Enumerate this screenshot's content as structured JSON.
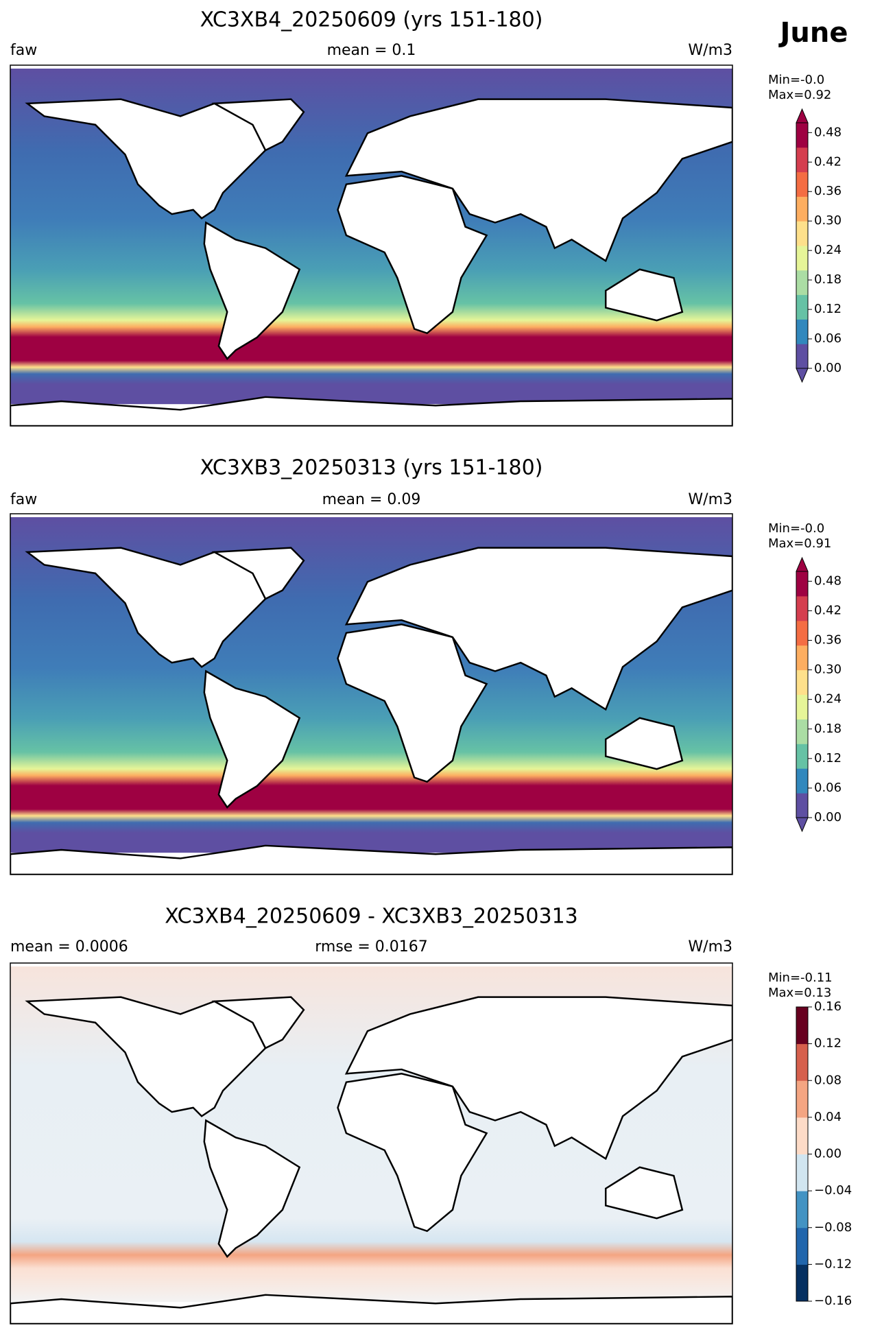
{
  "month": "June",
  "chart_data": [
    {
      "type": "map",
      "title": "XC3XB4_20250609 (yrs 151-180)",
      "left_label": "faw",
      "center_label": "mean = 0.1",
      "units": "W/m3",
      "min_label": "Min=-0.0",
      "max_label": "Max=0.92",
      "colorbar": {
        "ylim": [
          0,
          0.5
        ],
        "extend": "both",
        "yticks": [
          {
            "value": 0,
            "label": "0.00"
          },
          0.06,
          0.12,
          0.18,
          0.24,
          {
            "value": 0.3,
            "label": "0.30"
          },
          0.36,
          0.42,
          0.48
        ],
        "colors": [
          "#5e4fa2",
          "#3288bd",
          "#66c2a5",
          "#abdda4",
          "#e6f598",
          "#fee08b",
          "#fdae61",
          "#f46d43",
          "#d53e4f",
          "#9e0142"
        ]
      }
    },
    {
      "type": "map",
      "title": "XC3XB3_20250313 (yrs 151-180)",
      "left_label": "faw",
      "center_label": "mean = 0.09",
      "units": "W/m3",
      "min_label": "Min=-0.0",
      "max_label": "Max=0.91",
      "colorbar": {
        "ylim": [
          0,
          0.5
        ],
        "extend": "both",
        "yticks": [
          {
            "value": 0,
            "label": "0.00"
          },
          0.06,
          0.12,
          0.18,
          0.24,
          {
            "value": 0.3,
            "label": "0.30"
          },
          0.36,
          0.42,
          0.48
        ],
        "colors": [
          "#5e4fa2",
          "#3288bd",
          "#66c2a5",
          "#abdda4",
          "#e6f598",
          "#fee08b",
          "#fdae61",
          "#f46d43",
          "#d53e4f",
          "#9e0142"
        ]
      }
    },
    {
      "type": "map",
      "title": "XC3XB4_20250609 - XC3XB3_20250313",
      "left_label": "mean = 0.0006",
      "center_label": "rmse = 0.0167",
      "units": "W/m3",
      "min_label": "Min=-0.11",
      "max_label": "Max=0.13",
      "colorbar": {
        "ylim": [
          -0.16,
          0.16
        ],
        "extend": "neither",
        "yticks": [
          {
            "value": -0.16,
            "label": "−0.16"
          },
          {
            "value": -0.12,
            "label": "−0.12"
          },
          {
            "value": -0.08,
            "label": "−0.08"
          },
          {
            "value": -0.04,
            "label": "−0.04"
          },
          {
            "value": 0,
            "label": "0.00"
          },
          0.04,
          0.08,
          0.12,
          0.16
        ],
        "colors": [
          "#053061",
          "#2166ac",
          "#4393c3",
          "#d1e5f0",
          "#fddbc7",
          "#f4a582",
          "#d6604d",
          "#67001f"
        ]
      }
    }
  ]
}
